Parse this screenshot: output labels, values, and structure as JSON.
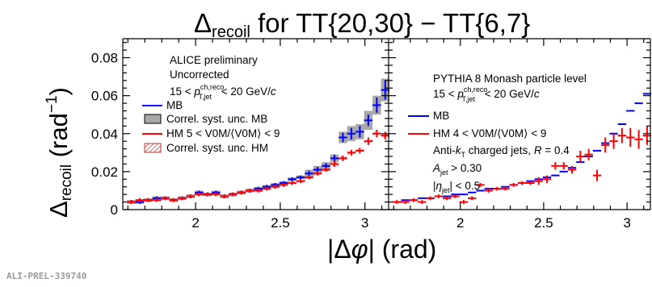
{
  "chart_data": {
    "type": "scatter",
    "title": {
      "pre": "Δ",
      "sub": "recoil",
      "post": " for TT{20,30} − TT{6,7}"
    },
    "ylabel": {
      "main": "Δ",
      "sub": "recoil",
      "unit_open": " (rad",
      "unit_sup": "−1",
      "unit_close": ")"
    },
    "xlabel": {
      "open": "|Δ",
      "phi": "φ",
      "close": "| (rad)"
    },
    "ylim": [
      0,
      0.09
    ],
    "yticks": [
      "0",
      "0.02",
      "0.04",
      "0.06",
      "0.08"
    ],
    "yticks_values": [
      0,
      0.02,
      0.04,
      0.06,
      0.08
    ],
    "xticks_left": [
      "2",
      "2.5",
      "3"
    ],
    "xticks_right": [
      "2",
      "2.5",
      "3"
    ],
    "xticks_values": [
      2,
      2.5,
      3
    ],
    "panels": [
      {
        "xlim": [
          1.57,
          3.14
        ],
        "annotations": [
          {
            "text": "ALICE preliminary"
          },
          {
            "text": "Uncorrected"
          },
          {
            "pre": "15 < ",
            "p": "p",
            "sup": "ch,reco",
            "sub": "T,jet",
            "post": " < 20 GeV/",
            "unit": "c"
          }
        ],
        "legend": [
          {
            "kind": "line",
            "color": "#0000ff",
            "label": "MB"
          },
          {
            "kind": "box",
            "color": "#a8a8a8",
            "label": "Correl. syst. unc. MB"
          },
          {
            "kind": "line",
            "color": "#ff0000",
            "label": "HM   5 < V0M/⟨V0M⟩ < 9"
          },
          {
            "kind": "hatch",
            "color": "#cc3333",
            "label": "Correl. syst. unc. HM"
          }
        ],
        "series": [
          {
            "name": "MB",
            "color": "#0000ff",
            "syst_color": "#a8a8a8",
            "x": [
              1.62,
              1.67,
              1.72,
              1.77,
              1.82,
              1.87,
              1.92,
              1.97,
              2.02,
              2.07,
              2.12,
              2.17,
              2.22,
              2.27,
              2.32,
              2.37,
              2.42,
              2.47,
              2.52,
              2.57,
              2.62,
              2.67,
              2.72,
              2.77,
              2.82,
              2.87,
              2.92,
              2.97,
              3.02,
              3.07,
              3.12
            ],
            "y": [
              0.004,
              0.004,
              0.005,
              0.006,
              0.006,
              0.005,
              0.006,
              0.007,
              0.009,
              0.008,
              0.009,
              0.007,
              0.008,
              0.009,
              0.01,
              0.011,
              0.012,
              0.013,
              0.014,
              0.016,
              0.017,
              0.019,
              0.021,
              0.023,
              0.027,
              0.038,
              0.04,
              0.041,
              0.047,
              0.055,
              0.063
            ],
            "xerr": 0.025,
            "yerr": [
              0.001,
              0.001,
              0.001,
              0.001,
              0.001,
              0.001,
              0.001,
              0.001,
              0.001,
              0.001,
              0.001,
              0.001,
              0.001,
              0.001,
              0.001,
              0.001,
              0.001,
              0.001,
              0.001,
              0.001,
              0.001,
              0.0015,
              0.0015,
              0.0015,
              0.002,
              0.0025,
              0.003,
              0.003,
              0.003,
              0.004,
              0.005
            ],
            "syst": [
              0.001,
              0.001,
              0.001,
              0.001,
              0.001,
              0.001,
              0.001,
              0.001,
              0.001,
              0.001,
              0.001,
              0.001,
              0.001,
              0.001,
              0.001,
              0.001,
              0.001,
              0.001,
              0.001,
              0.001,
              0.001,
              0.002,
              0.002,
              0.002,
              0.002,
              0.003,
              0.004,
              0.004,
              0.005,
              0.005,
              0.006
            ]
          },
          {
            "name": "HM",
            "color": "#ff0000",
            "x": [
              1.62,
              1.67,
              1.72,
              1.77,
              1.82,
              1.87,
              1.92,
              1.97,
              2.02,
              2.07,
              2.12,
              2.17,
              2.22,
              2.27,
              2.32,
              2.37,
              2.42,
              2.47,
              2.52,
              2.57,
              2.62,
              2.67,
              2.72,
              2.77,
              2.82,
              2.87,
              2.92,
              2.97,
              3.02,
              3.07,
              3.12
            ],
            "y": [
              0.004,
              0.005,
              0.005,
              0.005,
              0.006,
              0.005,
              0.006,
              0.007,
              0.008,
              0.008,
              0.008,
              0.007,
              0.008,
              0.009,
              0.01,
              0.01,
              0.011,
              0.012,
              0.013,
              0.014,
              0.015,
              0.017,
              0.019,
              0.021,
              0.024,
              0.027,
              0.03,
              0.031,
              0.036,
              0.04,
              0.039
            ],
            "xerr": 0.025,
            "yerr": [
              0.001,
              0.001,
              0.001,
              0.001,
              0.001,
              0.001,
              0.001,
              0.001,
              0.001,
              0.001,
              0.001,
              0.001,
              0.001,
              0.001,
              0.001,
              0.001,
              0.001,
              0.001,
              0.001,
              0.001,
              0.001,
              0.001,
              0.001,
              0.001,
              0.0015,
              0.0015,
              0.0015,
              0.0015,
              0.002,
              0.002,
              0.002
            ],
            "syst": [
              0.0008,
              0.0008,
              0.0008,
              0.0008,
              0.0008,
              0.0008,
              0.0008,
              0.0008,
              0.0008,
              0.0008,
              0.0008,
              0.0008,
              0.0008,
              0.0008,
              0.0008,
              0.0008,
              0.0008,
              0.0008,
              0.0008,
              0.0008,
              0.0008,
              0.001,
              0.001,
              0.001,
              0.001,
              0.001,
              0.001,
              0.001,
              0.001,
              0.001,
              0.001
            ]
          }
        ]
      },
      {
        "xlim": [
          1.57,
          3.14
        ],
        "annotations": [
          {
            "text": "PYTHIA 8 Monash particle level"
          },
          {
            "pre": "15 < ",
            "p": "p",
            "sup": "ch,reco",
            "sub": "T,jet",
            "post": " < 20 GeV/",
            "unit": "c"
          },
          {
            "pre": "Anti-",
            "k": "k",
            "ksub": "T",
            "post": " charged jets, ",
            "r": "R",
            "rpost": " = 0.4"
          },
          {
            "a": "A",
            "asub": "jet",
            "post": " > 0.30"
          },
          {
            "open": "|",
            "eta": "η",
            "etasub": "jet",
            "post": "| < 0.5"
          }
        ],
        "legend": [
          {
            "kind": "line",
            "color": "#0000ff",
            "label": "MB"
          },
          {
            "kind": "line",
            "color": "#ff0000",
            "label": "HM    4 < V0M/⟨V0M⟩ < 9"
          }
        ],
        "series": [
          {
            "name": "MB",
            "color": "#0000ff",
            "x": [
              1.62,
              1.67,
              1.72,
              1.77,
              1.82,
              1.87,
              1.92,
              1.97,
              2.02,
              2.07,
              2.12,
              2.17,
              2.22,
              2.27,
              2.32,
              2.37,
              2.42,
              2.47,
              2.52,
              2.57,
              2.62,
              2.67,
              2.72,
              2.77,
              2.82,
              2.87,
              2.92,
              2.97,
              3.02,
              3.07,
              3.12
            ],
            "y": [
              0.004,
              0.005,
              0.005,
              0.006,
              0.006,
              0.007,
              0.007,
              0.008,
              0.008,
              0.009,
              0.01,
              0.011,
              0.011,
              0.012,
              0.013,
              0.014,
              0.015,
              0.016,
              0.017,
              0.018,
              0.02,
              0.022,
              0.025,
              0.028,
              0.031,
              0.035,
              0.04,
              0.045,
              0.052,
              0.056,
              0.061
            ],
            "xerr": 0.025,
            "yerr": [
              0,
              0,
              0,
              0,
              0,
              0,
              0,
              0,
              0,
              0,
              0,
              0,
              0,
              0,
              0,
              0,
              0,
              0,
              0,
              0,
              0,
              0,
              0,
              0,
              0,
              0,
              0,
              0,
              0,
              0,
              0
            ]
          },
          {
            "name": "HM",
            "color": "#ff0000",
            "x": [
              1.62,
              1.67,
              1.72,
              1.77,
              1.82,
              1.87,
              1.92,
              1.97,
              2.02,
              2.07,
              2.12,
              2.17,
              2.22,
              2.27,
              2.32,
              2.37,
              2.42,
              2.47,
              2.52,
              2.57,
              2.62,
              2.67,
              2.72,
              2.77,
              2.82,
              2.87,
              2.92,
              2.97,
              3.02,
              3.07,
              3.12
            ],
            "y": [
              0.004,
              0.004,
              0.005,
              0.004,
              0.006,
              0.007,
              0.006,
              0.007,
              0.004,
              0.006,
              0.013,
              0.01,
              0.011,
              0.011,
              0.013,
              0.014,
              0.014,
              0.015,
              0.016,
              0.023,
              0.023,
              0.021,
              0.028,
              0.029,
              0.018,
              0.034,
              0.036,
              0.039,
              0.038,
              0.037,
              0.039
            ],
            "xerr": 0.025,
            "yerr": [
              0.001,
              0.001,
              0.001,
              0.001,
              0.001,
              0.001,
              0.001,
              0.001,
              0.001,
              0.001,
              0.001,
              0.001,
              0.001,
              0.001,
              0.001,
              0.001,
              0.001,
              0.002,
              0.002,
              0.002,
              0.002,
              0.002,
              0.003,
              0.003,
              0.003,
              0.004,
              0.004,
              0.004,
              0.005,
              0.005,
              0.005
            ]
          }
        ]
      }
    ]
  },
  "footer": {
    "preliminary_id": "ALI-PREL-339740"
  }
}
